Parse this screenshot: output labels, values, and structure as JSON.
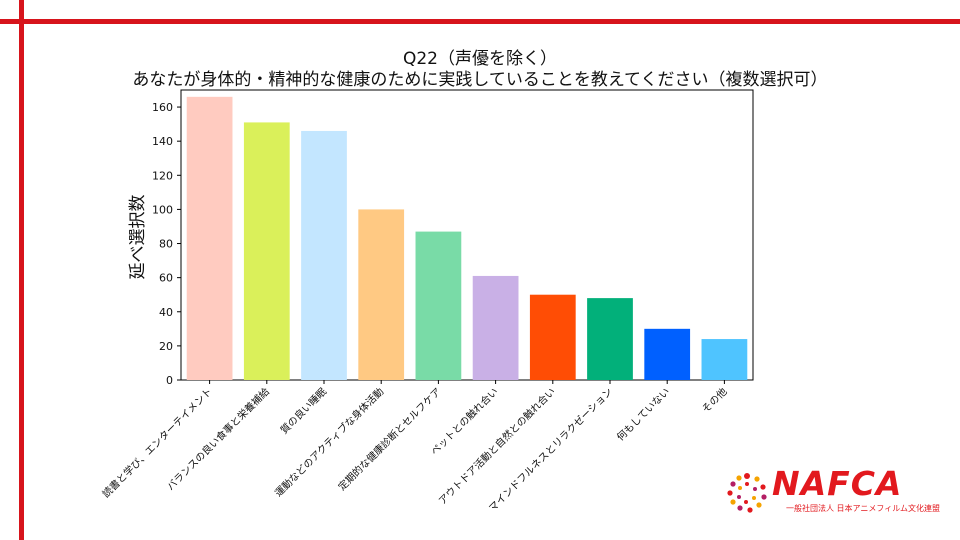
{
  "chart_data": {
    "type": "bar",
    "title_line1": "Q22（声優を除く）",
    "title_line2": "あなたが身体的・精神的な健康のために実践していることを教えてください（複数選択可）",
    "ylabel": "延べ選択数",
    "ylim": [
      0,
      170
    ],
    "yticks": [
      0,
      20,
      40,
      60,
      80,
      100,
      120,
      140,
      160
    ],
    "categories": [
      "読書と学び、エンターテイメント",
      "バランスの良い食事と栄養補給",
      "質の良い睡眠",
      "運動などのアクティブな身体活動",
      "定期的な健康診断とセルフケア",
      "ペットとの触れ合い",
      "アウトドア活動と自然との触れ合い",
      "マインドフルネスとリラクゼーション",
      "何もしていない",
      "その他"
    ],
    "values": [
      166,
      151,
      146,
      100,
      87,
      61,
      50,
      48,
      30,
      24
    ],
    "colors": [
      "#ffcbc0",
      "#daf05a",
      "#c3e6ff",
      "#ffc983",
      "#79dba7",
      "#c9b0e6",
      "#ff4d05",
      "#02b07a",
      "#0060ff",
      "#4fc4ff"
    ],
    "grid": false,
    "legend": "none"
  },
  "logo": {
    "wordmark": "NAFCA",
    "subtitle": "一般社団法人 日本アニメフィルム文化連盟",
    "colors": [
      "#e2191e",
      "#f5a300",
      "#b41e64"
    ]
  },
  "frame_color": "#d7141c"
}
